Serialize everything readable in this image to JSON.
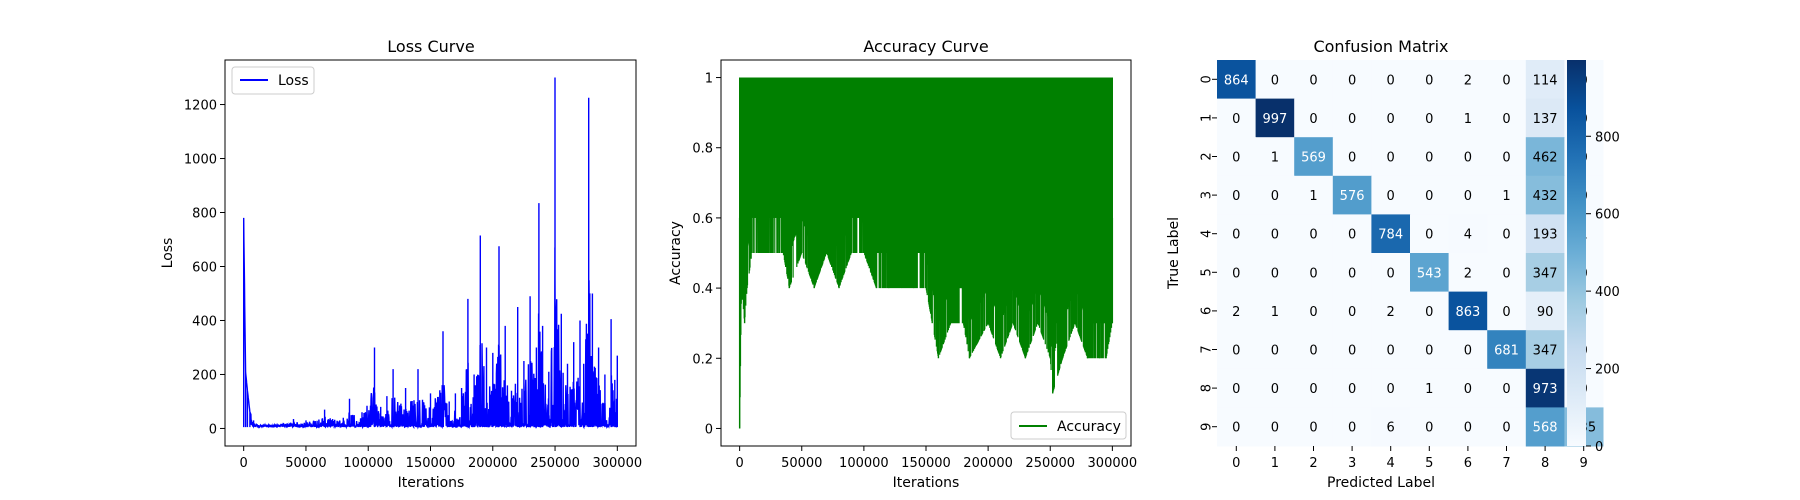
{
  "chart_data": [
    {
      "type": "line",
      "title": "Loss Curve",
      "xlabel": "Iterations",
      "ylabel": "Loss",
      "xlim": [
        -15000,
        315000
      ],
      "ylim": [
        -65,
        1365
      ],
      "xticks": [
        0,
        50000,
        100000,
        150000,
        200000,
        250000,
        300000
      ],
      "yticks": [
        0,
        200,
        400,
        600,
        800,
        1000,
        1200
      ],
      "grid": false,
      "legend": "top-left",
      "series": [
        {
          "name": "Loss",
          "color": "#0000ff",
          "baseline": 5,
          "points": [
            [
              0,
              780
            ],
            [
              1500,
              210
            ],
            [
              3000,
              140
            ],
            [
              5000,
              60
            ],
            [
              8000,
              30
            ],
            [
              15000,
              12
            ],
            [
              25000,
              15
            ],
            [
              40000,
              35
            ],
            [
              50000,
              30
            ],
            [
              65000,
              70
            ],
            [
              80000,
              40
            ],
            [
              85000,
              110
            ],
            [
              95000,
              60
            ],
            [
              105000,
              300
            ],
            [
              110000,
              80
            ],
            [
              115000,
              120
            ],
            [
              120000,
              220
            ],
            [
              130000,
              150
            ],
            [
              140000,
              220
            ],
            [
              150000,
              130
            ],
            [
              160000,
              360
            ],
            [
              165000,
              100
            ],
            [
              170000,
              130
            ],
            [
              175000,
              150
            ],
            [
              180000,
              480
            ],
            [
              185000,
              200
            ],
            [
              190000,
              715
            ],
            [
              195000,
              300
            ],
            [
              200000,
              280
            ],
            [
              205000,
              675
            ],
            [
              210000,
              380
            ],
            [
              215000,
              140
            ],
            [
              220000,
              450
            ],
            [
              225000,
              250
            ],
            [
              230000,
              490
            ],
            [
              235000,
              300
            ],
            [
              237000,
              835
            ],
            [
              240000,
              380
            ],
            [
              245000,
              210
            ],
            [
              250000,
              1300
            ],
            [
              255000,
              425
            ],
            [
              260000,
              240
            ],
            [
              265000,
              320
            ],
            [
              270000,
              400
            ],
            [
              273000,
              240
            ],
            [
              277000,
              1225
            ],
            [
              280000,
              500
            ],
            [
              285000,
              300
            ],
            [
              290000,
              200
            ],
            [
              295000,
              405
            ],
            [
              298000,
              180
            ],
            [
              300000,
              270
            ]
          ]
        }
      ]
    },
    {
      "type": "line",
      "title": "Accuracy Curve",
      "xlabel": "Iterations",
      "ylabel": "Accuracy",
      "xlim": [
        -15000,
        315000
      ],
      "ylim": [
        -0.05,
        1.05
      ],
      "xticks": [
        0,
        50000,
        100000,
        150000,
        200000,
        250000,
        300000
      ],
      "yticks": [
        0.0,
        0.2,
        0.4,
        0.6,
        0.8,
        1.0
      ],
      "grid": false,
      "legend": "bottom-right",
      "series": [
        {
          "name": "Accuracy",
          "color": "#008000",
          "max_value": 1.0,
          "lower_envelope": [
            [
              0,
              0.0
            ],
            [
              1500,
              0.4
            ],
            [
              4000,
              0.3
            ],
            [
              6000,
              0.4
            ],
            [
              10000,
              0.5
            ],
            [
              15000,
              0.5
            ],
            [
              20000,
              0.5
            ],
            [
              35000,
              0.5
            ],
            [
              40000,
              0.4
            ],
            [
              50000,
              0.5
            ],
            [
              60000,
              0.4
            ],
            [
              70000,
              0.5
            ],
            [
              80000,
              0.4
            ],
            [
              90000,
              0.5
            ],
            [
              100000,
              0.5
            ],
            [
              110000,
              0.4
            ],
            [
              120000,
              0.4
            ],
            [
              130000,
              0.4
            ],
            [
              140000,
              0.4
            ],
            [
              150000,
              0.4
            ],
            [
              155000,
              0.3
            ],
            [
              160000,
              0.2
            ],
            [
              170000,
              0.3
            ],
            [
              180000,
              0.3
            ],
            [
              185000,
              0.2
            ],
            [
              200000,
              0.3
            ],
            [
              210000,
              0.2
            ],
            [
              220000,
              0.3
            ],
            [
              230000,
              0.2
            ],
            [
              240000,
              0.3
            ],
            [
              250000,
              0.2
            ],
            [
              252000,
              0.1
            ],
            [
              260000,
              0.2
            ],
            [
              270000,
              0.3
            ],
            [
              280000,
              0.2
            ],
            [
              290000,
              0.2
            ],
            [
              295000,
              0.2
            ],
            [
              300000,
              0.3
            ]
          ]
        }
      ]
    },
    {
      "type": "heatmap",
      "title": "Confusion Matrix",
      "xlabel": "Predicted Label",
      "ylabel": "True Label",
      "x_categories": [
        "0",
        "1",
        "2",
        "3",
        "4",
        "5",
        "6",
        "7",
        "8",
        "9"
      ],
      "y_categories": [
        "0",
        "1",
        "2",
        "3",
        "4",
        "5",
        "6",
        "7",
        "8",
        "9"
      ],
      "colormap": "Blues",
      "colorbar_range": [
        0,
        997
      ],
      "colorbar_ticks": [
        0,
        200,
        400,
        600,
        800
      ],
      "values": [
        [
          864,
          0,
          0,
          0,
          0,
          0,
          2,
          0,
          114,
          0
        ],
        [
          0,
          997,
          0,
          0,
          0,
          0,
          1,
          0,
          137,
          0
        ],
        [
          0,
          1,
          569,
          0,
          0,
          0,
          0,
          0,
          462,
          0
        ],
        [
          0,
          0,
          1,
          576,
          0,
          0,
          0,
          1,
          432,
          0
        ],
        [
          0,
          0,
          0,
          0,
          784,
          0,
          4,
          0,
          193,
          1
        ],
        [
          0,
          0,
          0,
          0,
          0,
          543,
          2,
          0,
          347,
          0
        ],
        [
          2,
          1,
          0,
          0,
          2,
          0,
          863,
          0,
          90,
          0
        ],
        [
          0,
          0,
          0,
          0,
          0,
          0,
          0,
          681,
          347,
          0
        ],
        [
          0,
          0,
          0,
          0,
          0,
          1,
          0,
          0,
          973,
          0
        ],
        [
          0,
          0,
          0,
          0,
          6,
          0,
          0,
          0,
          568,
          435
        ]
      ]
    }
  ]
}
